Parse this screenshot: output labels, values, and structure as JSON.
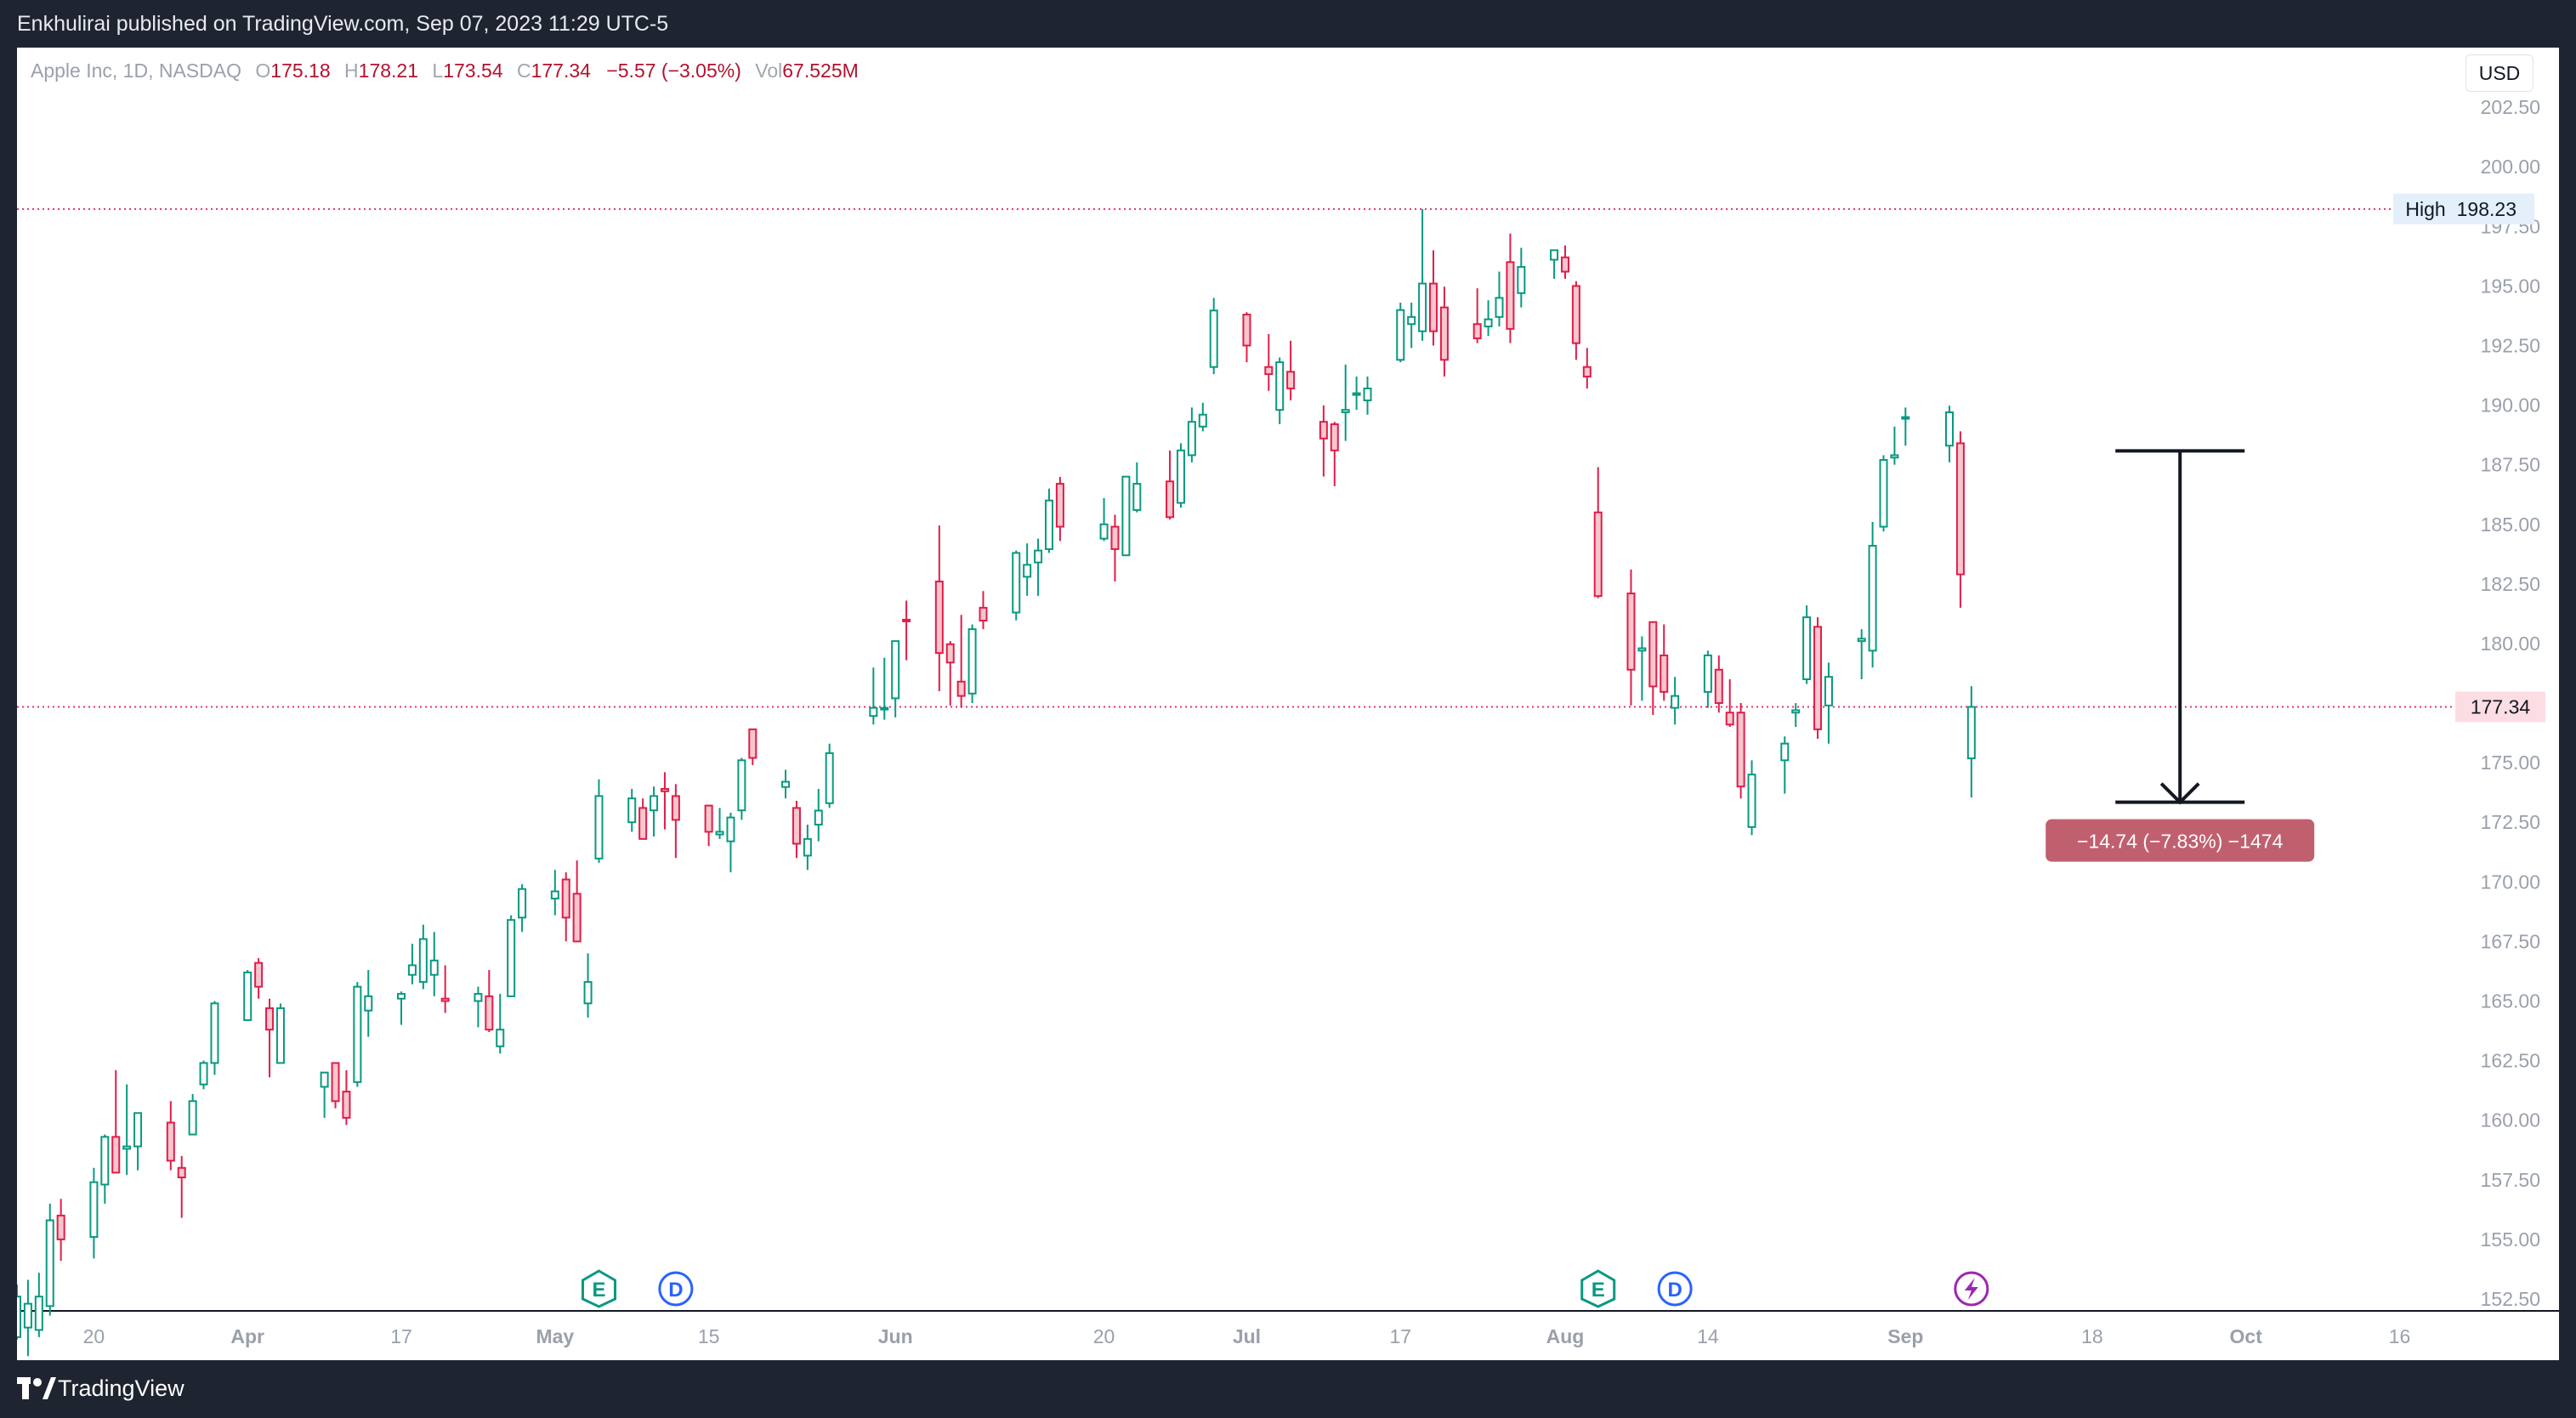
{
  "header": {
    "publisher_text": "Enkhulirai published on TradingView.com, Sep 07, 2023 11:29 UTC-5"
  },
  "footer": {
    "brand": "TradingView",
    "logo_icon": "tradingview-logo-icon"
  },
  "legend": {
    "symbol": "Apple Inc, 1D, NASDAQ",
    "open_label": "O",
    "open": "175.18",
    "high_label": "H",
    "high": "178.21",
    "low_label": "L",
    "low": "173.54",
    "close_label": "C",
    "close": "177.34",
    "change": "−5.57 (−3.05%)",
    "vol_label": "Vol",
    "vol": "67.525M"
  },
  "currency": "USD",
  "colors": {
    "up": "#089981",
    "up_fill": "#ffffff",
    "down": "#e11d48",
    "down_fill": "#f7c6cf",
    "price_line": "#e6336f",
    "frame": "#1f2431"
  },
  "chart_data": {
    "type": "candlestick",
    "y_axis": {
      "ticks": [
        152.5,
        155.0,
        157.5,
        160.0,
        162.5,
        165.0,
        167.5,
        170.0,
        172.5,
        175.0,
        177.5,
        180.0,
        182.5,
        185.0,
        187.5,
        190.0,
        192.5,
        195.0,
        197.5,
        200.0,
        202.5
      ],
      "tick_labels": [
        "152.50",
        "155.00",
        "157.50",
        "160.00",
        "162.50",
        "165.00",
        "167.50",
        "170.00",
        "172.50",
        "175.00",
        "177.50",
        "180.00",
        "182.50",
        "185.00",
        "187.50",
        "190.00",
        "192.50",
        "195.00",
        "197.50",
        "200.00",
        "202.50"
      ],
      "range": [
        152.0,
        205.0
      ]
    },
    "x_axis": {
      "range": [
        "2023-03-13",
        "2023-10-22"
      ],
      "ticks": [
        {
          "date": "2023-03-20",
          "label": "20",
          "bold": false
        },
        {
          "date": "2023-04-03",
          "label": "Apr",
          "bold": true
        },
        {
          "date": "2023-04-17",
          "label": "17",
          "bold": false
        },
        {
          "date": "2023-05-01",
          "label": "May",
          "bold": true
        },
        {
          "date": "2023-05-15",
          "label": "15",
          "bold": false
        },
        {
          "date": "2023-06-01",
          "label": "Jun",
          "bold": true
        },
        {
          "date": "2023-06-20",
          "label": "20",
          "bold": false
        },
        {
          "date": "2023-07-03",
          "label": "Jul",
          "bold": true
        },
        {
          "date": "2023-07-17",
          "label": "17",
          "bold": false
        },
        {
          "date": "2023-08-01",
          "label": "Aug",
          "bold": true
        },
        {
          "date": "2023-08-14",
          "label": "14",
          "bold": false
        },
        {
          "date": "2023-09-01",
          "label": "Sep",
          "bold": true
        },
        {
          "date": "2023-09-18",
          "label": "18",
          "bold": false
        },
        {
          "date": "2023-10-02",
          "label": "Oct",
          "bold": true
        },
        {
          "date": "2023-10-16",
          "label": "16",
          "bold": false
        }
      ]
    },
    "candles": [
      {
        "d": "2023-03-13",
        "o": 150.9,
        "h": 153.1,
        "l": 150.8,
        "c": 152.6
      },
      {
        "d": "2023-03-14",
        "o": 151.3,
        "h": 153.3,
        "l": 150.1,
        "c": 152.3
      },
      {
        "d": "2023-03-15",
        "o": 151.2,
        "h": 153.6,
        "l": 150.9,
        "c": 152.6
      },
      {
        "d": "2023-03-16",
        "o": 152.2,
        "h": 156.5,
        "l": 151.8,
        "c": 155.8
      },
      {
        "d": "2023-03-17",
        "o": 156.0,
        "h": 156.7,
        "l": 154.1,
        "c": 155.0
      },
      {
        "d": "2023-03-20",
        "o": 155.1,
        "h": 158.0,
        "l": 154.2,
        "c": 157.4
      },
      {
        "d": "2023-03-21",
        "o": 157.3,
        "h": 159.4,
        "l": 156.5,
        "c": 159.3
      },
      {
        "d": "2023-03-22",
        "o": 159.3,
        "h": 162.1,
        "l": 157.8,
        "c": 157.8
      },
      {
        "d": "2023-03-23",
        "o": 158.8,
        "h": 161.5,
        "l": 157.7,
        "c": 158.9
      },
      {
        "d": "2023-03-24",
        "o": 158.9,
        "h": 160.3,
        "l": 157.9,
        "c": 160.3
      },
      {
        "d": "2023-03-27",
        "o": 159.9,
        "h": 160.8,
        "l": 157.9,
        "c": 158.3
      },
      {
        "d": "2023-03-28",
        "o": 158.0,
        "h": 158.5,
        "l": 155.9,
        "c": 157.6
      },
      {
        "d": "2023-03-29",
        "o": 159.4,
        "h": 161.1,
        "l": 159.4,
        "c": 160.8
      },
      {
        "d": "2023-03-30",
        "o": 161.5,
        "h": 162.5,
        "l": 161.3,
        "c": 162.4
      },
      {
        "d": "2023-03-31",
        "o": 162.4,
        "h": 165.0,
        "l": 161.9,
        "c": 164.9
      },
      {
        "d": "2023-04-03",
        "o": 164.2,
        "h": 166.3,
        "l": 164.2,
        "c": 166.2
      },
      {
        "d": "2023-04-04",
        "o": 166.6,
        "h": 166.8,
        "l": 165.1,
        "c": 165.6
      },
      {
        "d": "2023-04-05",
        "o": 164.7,
        "h": 165.1,
        "l": 161.8,
        "c": 163.8
      },
      {
        "d": "2023-04-06",
        "o": 162.4,
        "h": 164.9,
        "l": 162.4,
        "c": 164.7
      },
      {
        "d": "2023-04-10",
        "o": 161.4,
        "h": 162.0,
        "l": 160.1,
        "c": 162.0
      },
      {
        "d": "2023-04-11",
        "o": 162.4,
        "h": 162.4,
        "l": 160.5,
        "c": 160.8
      },
      {
        "d": "2023-04-12",
        "o": 161.2,
        "h": 162.1,
        "l": 159.8,
        "c": 160.1
      },
      {
        "d": "2023-04-13",
        "o": 161.6,
        "h": 165.8,
        "l": 161.4,
        "c": 165.6
      },
      {
        "d": "2023-04-14",
        "o": 164.6,
        "h": 166.3,
        "l": 163.5,
        "c": 165.2
      },
      {
        "d": "2023-04-17",
        "o": 165.1,
        "h": 165.4,
        "l": 164.0,
        "c": 165.3
      },
      {
        "d": "2023-04-18",
        "o": 166.1,
        "h": 167.4,
        "l": 165.7,
        "c": 166.5
      },
      {
        "d": "2023-04-19",
        "o": 165.8,
        "h": 168.2,
        "l": 165.5,
        "c": 167.6
      },
      {
        "d": "2023-04-20",
        "o": 166.1,
        "h": 167.9,
        "l": 165.2,
        "c": 166.7
      },
      {
        "d": "2023-04-21",
        "o": 165.1,
        "h": 166.5,
        "l": 164.5,
        "c": 165.0
      },
      {
        "d": "2023-04-24",
        "o": 165.0,
        "h": 165.6,
        "l": 163.9,
        "c": 165.3
      },
      {
        "d": "2023-04-25",
        "o": 165.2,
        "h": 166.3,
        "l": 163.7,
        "c": 163.8
      },
      {
        "d": "2023-04-26",
        "o": 163.1,
        "h": 165.3,
        "l": 162.8,
        "c": 163.8
      },
      {
        "d": "2023-04-27",
        "o": 165.2,
        "h": 168.6,
        "l": 165.2,
        "c": 168.4
      },
      {
        "d": "2023-04-28",
        "o": 168.5,
        "h": 169.9,
        "l": 167.9,
        "c": 169.7
      },
      {
        "d": "2023-05-01",
        "o": 169.3,
        "h": 170.5,
        "l": 168.6,
        "c": 169.6
      },
      {
        "d": "2023-05-02",
        "o": 170.1,
        "h": 170.4,
        "l": 167.5,
        "c": 168.5
      },
      {
        "d": "2023-05-03",
        "o": 169.5,
        "h": 170.9,
        "l": 167.5,
        "c": 167.5
      },
      {
        "d": "2023-05-04",
        "o": 164.9,
        "h": 167.0,
        "l": 164.3,
        "c": 165.8
      },
      {
        "d": "2023-05-05",
        "o": 170.98,
        "h": 174.3,
        "l": 170.8,
        "c": 173.6
      },
      {
        "d": "2023-05-08",
        "o": 172.5,
        "h": 173.9,
        "l": 172.1,
        "c": 173.5
      },
      {
        "d": "2023-05-09",
        "o": 173.1,
        "h": 173.5,
        "l": 171.9,
        "c": 171.8
      },
      {
        "d": "2023-05-10",
        "o": 173.0,
        "h": 174.0,
        "l": 171.9,
        "c": 173.6
      },
      {
        "d": "2023-05-11",
        "o": 173.9,
        "h": 174.6,
        "l": 172.2,
        "c": 173.8
      },
      {
        "d": "2023-05-12",
        "o": 173.6,
        "h": 174.1,
        "l": 171.0,
        "c": 172.6
      },
      {
        "d": "2023-05-15",
        "o": 173.2,
        "h": 173.2,
        "l": 171.5,
        "c": 172.1
      },
      {
        "d": "2023-05-16",
        "o": 171.99,
        "h": 173.1,
        "l": 171.8,
        "c": 172.1
      },
      {
        "d": "2023-05-17",
        "o": 171.7,
        "h": 172.9,
        "l": 170.4,
        "c": 172.7
      },
      {
        "d": "2023-05-18",
        "o": 173.0,
        "h": 175.2,
        "l": 172.6,
        "c": 175.1
      },
      {
        "d": "2023-05-19",
        "o": 176.4,
        "h": 176.4,
        "l": 174.9,
        "c": 175.2
      },
      {
        "d": "2023-05-22",
        "o": 173.98,
        "h": 174.7,
        "l": 173.5,
        "c": 174.2
      },
      {
        "d": "2023-05-23",
        "o": 173.1,
        "h": 173.4,
        "l": 171.0,
        "c": 171.6
      },
      {
        "d": "2023-05-24",
        "o": 171.1,
        "h": 172.4,
        "l": 170.5,
        "c": 171.8
      },
      {
        "d": "2023-05-25",
        "o": 172.4,
        "h": 173.9,
        "l": 171.7,
        "c": 172.99
      },
      {
        "d": "2023-05-26",
        "o": 173.3,
        "h": 175.8,
        "l": 173.1,
        "c": 175.4
      },
      {
        "d": "2023-05-30",
        "o": 176.96,
        "h": 178.99,
        "l": 176.6,
        "c": 177.3
      },
      {
        "d": "2023-05-31",
        "o": 177.3,
        "h": 179.4,
        "l": 176.8,
        "c": 177.3
      },
      {
        "d": "2023-06-01",
        "o": 177.7,
        "h": 180.1,
        "l": 176.9,
        "c": 180.1
      },
      {
        "d": "2023-06-02",
        "o": 181.0,
        "h": 181.8,
        "l": 179.3,
        "c": 180.95
      },
      {
        "d": "2023-06-05",
        "o": 182.6,
        "h": 184.95,
        "l": 178.0,
        "c": 179.6
      },
      {
        "d": "2023-06-06",
        "o": 179.97,
        "h": 180.1,
        "l": 177.4,
        "c": 179.2
      },
      {
        "d": "2023-06-07",
        "o": 178.4,
        "h": 181.2,
        "l": 177.3,
        "c": 177.8
      },
      {
        "d": "2023-06-08",
        "o": 177.9,
        "h": 180.8,
        "l": 177.5,
        "c": 180.6
      },
      {
        "d": "2023-06-09",
        "o": 181.5,
        "h": 182.2,
        "l": 180.6,
        "c": 180.96
      },
      {
        "d": "2023-06-12",
        "o": 181.3,
        "h": 183.9,
        "l": 180.97,
        "c": 183.8
      },
      {
        "d": "2023-06-13",
        "o": 182.8,
        "h": 184.2,
        "l": 182.0,
        "c": 183.3
      },
      {
        "d": "2023-06-14",
        "o": 183.4,
        "h": 184.4,
        "l": 182.0,
        "c": 183.9
      },
      {
        "d": "2023-06-15",
        "o": 183.96,
        "h": 186.5,
        "l": 183.8,
        "c": 186.0
      },
      {
        "d": "2023-06-16",
        "o": 186.7,
        "h": 186.99,
        "l": 184.3,
        "c": 184.9
      },
      {
        "d": "2023-06-20",
        "o": 184.4,
        "h": 186.1,
        "l": 184.3,
        "c": 185.0
      },
      {
        "d": "2023-06-21",
        "o": 184.9,
        "h": 185.4,
        "l": 182.6,
        "c": 183.96
      },
      {
        "d": "2023-06-22",
        "o": 183.7,
        "h": 187.0,
        "l": 183.7,
        "c": 187.0
      },
      {
        "d": "2023-06-23",
        "o": 185.6,
        "h": 187.6,
        "l": 185.5,
        "c": 186.7
      },
      {
        "d": "2023-06-26",
        "o": 186.8,
        "h": 188.1,
        "l": 185.2,
        "c": 185.3
      },
      {
        "d": "2023-06-27",
        "o": 185.9,
        "h": 188.4,
        "l": 185.7,
        "c": 188.1
      },
      {
        "d": "2023-06-28",
        "o": 187.9,
        "h": 189.9,
        "l": 187.6,
        "c": 189.3
      },
      {
        "d": "2023-06-29",
        "o": 189.1,
        "h": 190.1,
        "l": 188.9,
        "c": 189.6
      },
      {
        "d": "2023-06-30",
        "o": 191.6,
        "h": 194.5,
        "l": 191.3,
        "c": 193.97
      },
      {
        "d": "2023-07-03",
        "o": 193.8,
        "h": 193.9,
        "l": 191.8,
        "c": 192.5
      },
      {
        "d": "2023-07-05",
        "o": 191.6,
        "h": 192.98,
        "l": 190.6,
        "c": 191.3
      },
      {
        "d": "2023-07-06",
        "o": 189.8,
        "h": 192.0,
        "l": 189.2,
        "c": 191.8
      },
      {
        "d": "2023-07-07",
        "o": 191.4,
        "h": 192.7,
        "l": 190.2,
        "c": 190.7
      },
      {
        "d": "2023-07-10",
        "o": 189.3,
        "h": 189.99,
        "l": 187.0,
        "c": 188.6
      },
      {
        "d": "2023-07-11",
        "o": 189.2,
        "h": 189.3,
        "l": 186.6,
        "c": 188.1
      },
      {
        "d": "2023-07-12",
        "o": 189.7,
        "h": 191.7,
        "l": 188.5,
        "c": 189.8
      },
      {
        "d": "2023-07-13",
        "o": 190.5,
        "h": 191.2,
        "l": 189.8,
        "c": 190.5
      },
      {
        "d": "2023-07-14",
        "o": 190.2,
        "h": 191.2,
        "l": 189.6,
        "c": 190.7
      },
      {
        "d": "2023-07-17",
        "o": 191.9,
        "h": 194.3,
        "l": 191.8,
        "c": 193.99
      },
      {
        "d": "2023-07-18",
        "o": 193.4,
        "h": 194.3,
        "l": 192.4,
        "c": 193.7
      },
      {
        "d": "2023-07-19",
        "o": 193.1,
        "h": 198.23,
        "l": 192.7,
        "c": 195.1
      },
      {
        "d": "2023-07-20",
        "o": 195.1,
        "h": 196.5,
        "l": 192.5,
        "c": 193.1
      },
      {
        "d": "2023-07-21",
        "o": 194.1,
        "h": 194.97,
        "l": 191.2,
        "c": 191.9
      },
      {
        "d": "2023-07-24",
        "o": 193.4,
        "h": 194.9,
        "l": 192.6,
        "c": 192.8
      },
      {
        "d": "2023-07-25",
        "o": 193.3,
        "h": 194.4,
        "l": 192.9,
        "c": 193.6
      },
      {
        "d": "2023-07-26",
        "o": 193.7,
        "h": 195.6,
        "l": 193.3,
        "c": 194.5
      },
      {
        "d": "2023-07-27",
        "o": 196.0,
        "h": 197.2,
        "l": 192.6,
        "c": 193.2
      },
      {
        "d": "2023-07-28",
        "o": 194.7,
        "h": 196.6,
        "l": 194.1,
        "c": 195.8
      },
      {
        "d": "2023-07-31",
        "o": 196.1,
        "h": 196.5,
        "l": 195.3,
        "c": 196.5
      },
      {
        "d": "2023-08-01",
        "o": 196.2,
        "h": 196.7,
        "l": 195.3,
        "c": 195.6
      },
      {
        "d": "2023-08-02",
        "o": 195.0,
        "h": 195.2,
        "l": 191.9,
        "c": 192.6
      },
      {
        "d": "2023-08-03",
        "o": 191.6,
        "h": 192.4,
        "l": 190.7,
        "c": 191.2
      },
      {
        "d": "2023-08-04",
        "o": 185.5,
        "h": 187.4,
        "l": 181.9,
        "c": 181.99
      },
      {
        "d": "2023-08-07",
        "o": 182.1,
        "h": 183.1,
        "l": 177.4,
        "c": 178.9
      },
      {
        "d": "2023-08-08",
        "o": 179.7,
        "h": 180.3,
        "l": 177.6,
        "c": 179.8
      },
      {
        "d": "2023-08-09",
        "o": 180.9,
        "h": 180.9,
        "l": 177.0,
        "c": 178.2
      },
      {
        "d": "2023-08-10",
        "o": 179.5,
        "h": 180.8,
        "l": 177.6,
        "c": 177.97
      },
      {
        "d": "2023-08-11",
        "o": 177.3,
        "h": 178.6,
        "l": 176.6,
        "c": 177.8
      },
      {
        "d": "2023-08-14",
        "o": 177.97,
        "h": 179.7,
        "l": 177.3,
        "c": 179.5
      },
      {
        "d": "2023-08-15",
        "o": 178.9,
        "h": 179.5,
        "l": 177.1,
        "c": 177.5
      },
      {
        "d": "2023-08-16",
        "o": 177.1,
        "h": 178.5,
        "l": 176.5,
        "c": 176.6
      },
      {
        "d": "2023-08-17",
        "o": 177.1,
        "h": 177.5,
        "l": 173.5,
        "c": 174.0
      },
      {
        "d": "2023-08-18",
        "o": 172.3,
        "h": 175.1,
        "l": 171.96,
        "c": 174.5
      },
      {
        "d": "2023-08-21",
        "o": 175.1,
        "h": 176.1,
        "l": 173.7,
        "c": 175.8
      },
      {
        "d": "2023-08-22",
        "o": 177.1,
        "h": 177.5,
        "l": 176.5,
        "c": 177.2
      },
      {
        "d": "2023-08-23",
        "o": 178.5,
        "h": 181.6,
        "l": 178.3,
        "c": 181.1
      },
      {
        "d": "2023-08-24",
        "o": 180.7,
        "h": 181.1,
        "l": 176.0,
        "c": 176.4
      },
      {
        "d": "2023-08-25",
        "o": 177.4,
        "h": 179.2,
        "l": 175.8,
        "c": 178.6
      },
      {
        "d": "2023-08-28",
        "o": 180.1,
        "h": 180.6,
        "l": 178.5,
        "c": 180.2
      },
      {
        "d": "2023-08-29",
        "o": 179.7,
        "h": 185.1,
        "l": 178.99,
        "c": 184.1
      },
      {
        "d": "2023-08-30",
        "o": 184.9,
        "h": 187.9,
        "l": 184.7,
        "c": 187.7
      },
      {
        "d": "2023-08-31",
        "o": 187.8,
        "h": 189.1,
        "l": 187.5,
        "c": 187.9
      },
      {
        "d": "2023-09-01",
        "o": 189.5,
        "h": 189.9,
        "l": 188.3,
        "c": 189.5
      },
      {
        "d": "2023-09-05",
        "o": 188.3,
        "h": 189.98,
        "l": 187.6,
        "c": 189.7
      },
      {
        "d": "2023-09-06",
        "o": 188.4,
        "h": 188.9,
        "l": 181.5,
        "c": 182.9
      },
      {
        "d": "2023-09-07",
        "o": 175.18,
        "h": 178.21,
        "l": 173.54,
        "c": 177.34
      }
    ],
    "high_line": {
      "label": "High",
      "value": 198.23,
      "value_label": "198.23"
    },
    "last_price": {
      "value": 177.34,
      "value_label": "177.34"
    },
    "measure": {
      "from": 188.08,
      "to": 173.34,
      "label": "−14.74 (−7.83%) −1474",
      "date": "2023-09-26"
    },
    "events": [
      {
        "date": "2023-05-05",
        "letter": "E",
        "kind": "earnings",
        "icon": "earnings-icon"
      },
      {
        "date": "2023-05-12",
        "letter": "D",
        "kind": "dividend",
        "icon": "dividend-icon"
      },
      {
        "date": "2023-08-04",
        "letter": "E",
        "kind": "earnings",
        "icon": "earnings-icon"
      },
      {
        "date": "2023-08-11",
        "letter": "D",
        "kind": "dividend",
        "icon": "dividend-icon"
      },
      {
        "date": "2023-09-07",
        "letter": "",
        "kind": "event",
        "icon": "lightning-icon"
      }
    ]
  }
}
